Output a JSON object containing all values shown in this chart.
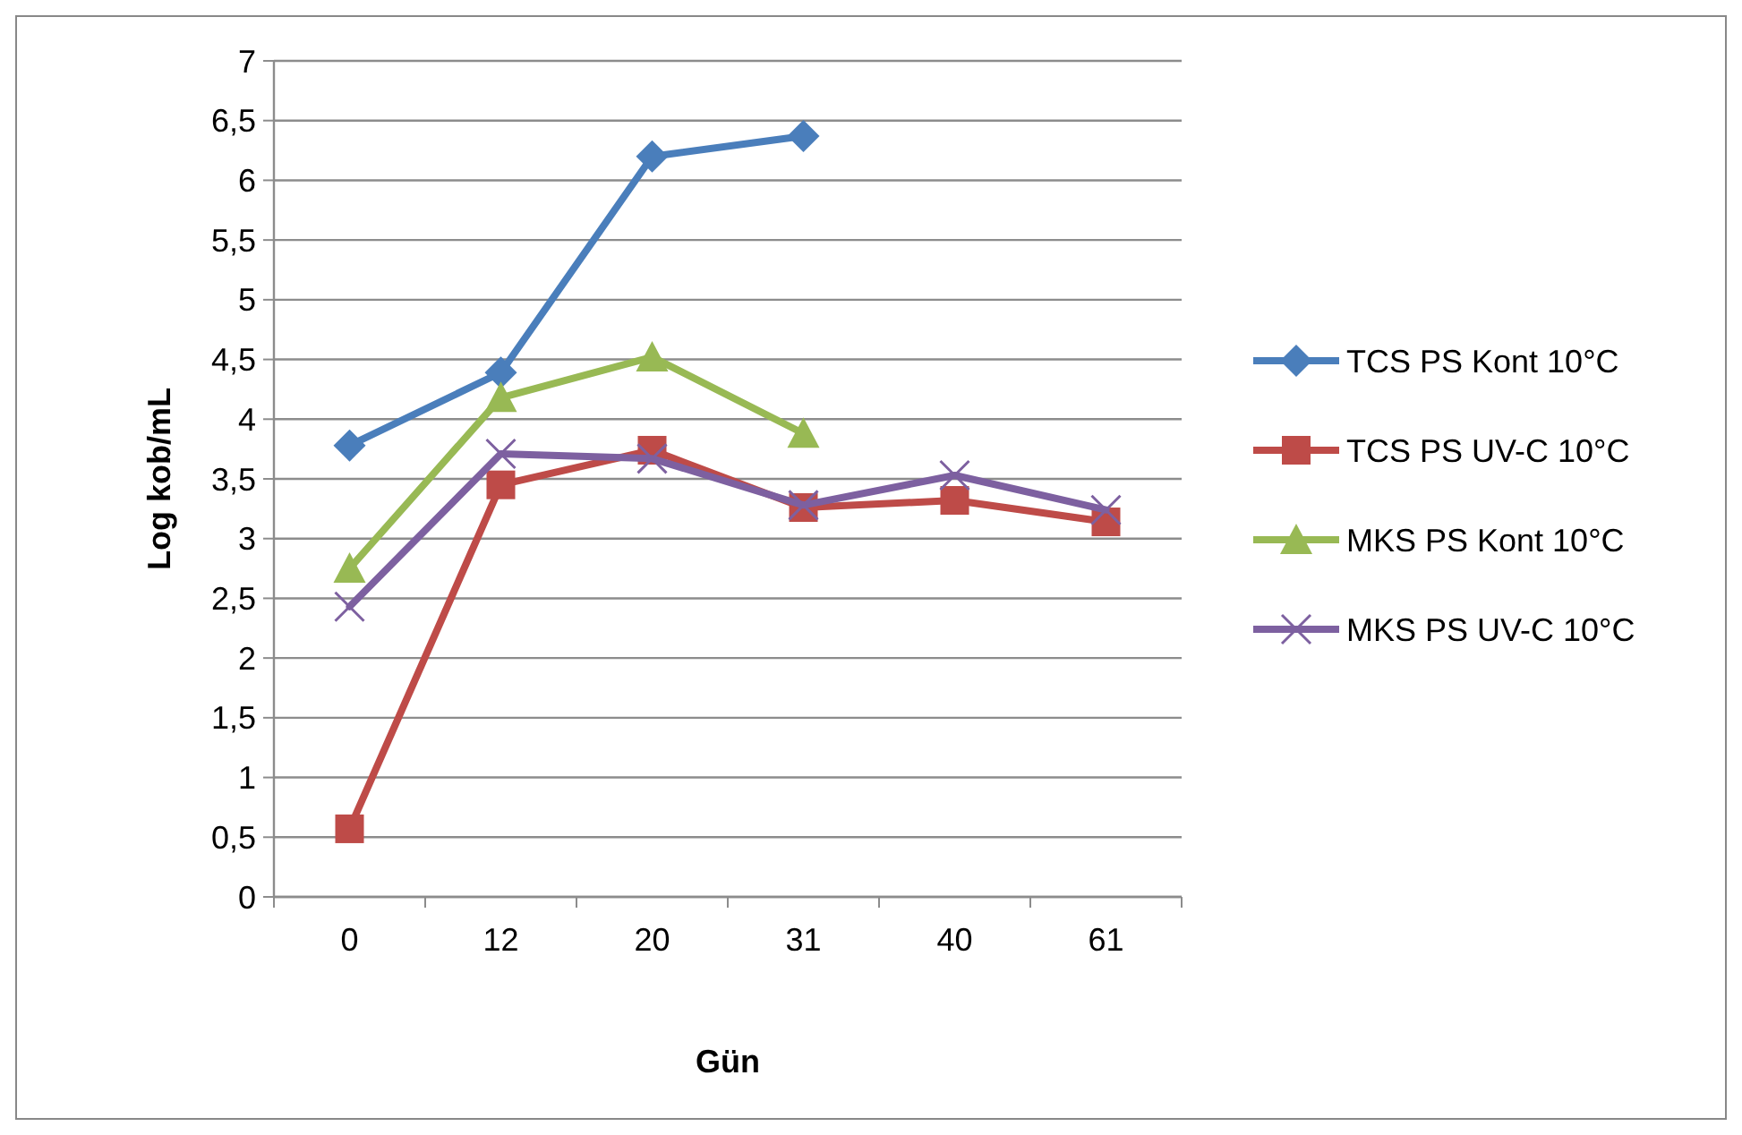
{
  "chart_data": {
    "type": "line",
    "xlabel": "Gün",
    "ylabel": "Log kob/mL",
    "categories": [
      "0",
      "12",
      "20",
      "31",
      "40",
      "61"
    ],
    "ylim": [
      0,
      7
    ],
    "yticks": [
      0,
      {
        "value": 0.5,
        "label": "0,5"
      },
      1,
      {
        "value": 1.5,
        "label": "1,5"
      },
      2,
      {
        "value": 2.5,
        "label": "2,5"
      },
      3,
      {
        "value": 3.5,
        "label": "3,5"
      },
      4,
      {
        "value": 4.5,
        "label": "4,5"
      },
      5,
      {
        "value": 5.5,
        "label": "5,5"
      },
      6,
      {
        "value": 6.5,
        "label": "6,5"
      },
      7
    ],
    "grid": "y",
    "legend": "right",
    "series": [
      {
        "name": "TCS PS Kont 10°C",
        "color": "#4a7ebb",
        "marker": "diamond",
        "values": [
          3.78,
          4.39,
          6.2,
          6.37,
          null,
          null
        ]
      },
      {
        "name": "TCS PS UV-C 10°C",
        "color": "#be4b48",
        "marker": "square",
        "values": [
          0.57,
          3.45,
          3.74,
          3.26,
          3.32,
          3.14
        ]
      },
      {
        "name": "MKS PS Kont 10°C",
        "color": "#98b954",
        "marker": "triangle",
        "values": [
          2.75,
          4.18,
          4.52,
          3.88,
          null,
          null
        ]
      },
      {
        "name": "MKS PS UV-C 10°C",
        "color": "#7d60a0",
        "marker": "cross",
        "values": [
          2.43,
          3.71,
          3.67,
          3.28,
          3.53,
          3.24
        ]
      }
    ]
  }
}
